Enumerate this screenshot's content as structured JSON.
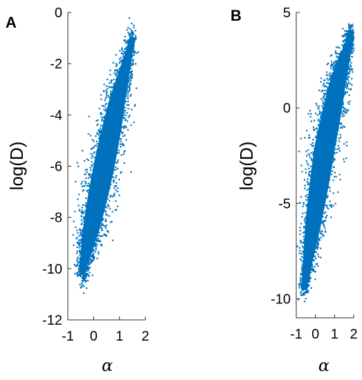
{
  "chart_data": [
    {
      "type": "scatter",
      "panel_label": "A",
      "xlabel": "α",
      "ylabel": "log(D)",
      "xlim": [
        -1,
        2
      ],
      "ylim": [
        -12,
        0
      ],
      "xticks": [
        -1,
        0,
        1,
        2
      ],
      "yticks": [
        0,
        -2,
        -4,
        -6,
        -8,
        -10,
        -12
      ],
      "xtick_labels": [
        "-1",
        "0",
        "1",
        "2"
      ],
      "ytick_labels": [
        "0",
        "-2",
        "-4",
        "-6",
        "-8",
        "-10",
        "-12"
      ],
      "marker_color": "#0072BD",
      "grid": false,
      "point_cloud": {
        "description_points": "dense elongated cloud along a rising diagonal",
        "centerline": [
          [
            -0.45,
            -10.2
          ],
          [
            -0.1,
            -8.5
          ],
          [
            0.4,
            -6
          ],
          [
            0.9,
            -3.5
          ],
          [
            1.5,
            -1
          ]
        ],
        "x_extent": [
          -0.95,
          1.75
        ],
        "y_extent": [
          -11.0,
          -0.2
        ]
      }
    },
    {
      "type": "scatter",
      "panel_label": "B",
      "xlabel": "α",
      "ylabel": "log(D)",
      "xlim": [
        -1,
        2
      ],
      "ylim": [
        -11,
        5
      ],
      "xticks": [
        -1,
        0,
        1,
        2
      ],
      "yticks": [
        5,
        0,
        -5,
        -10
      ],
      "xtick_labels": [
        "-1",
        "0",
        "1",
        "2"
      ],
      "ytick_labels": [
        "5",
        "0",
        "-5",
        "-10"
      ],
      "marker_color": "#0072BD",
      "grid": false,
      "point_cloud": {
        "centerline": [
          [
            -0.6,
            -9.5
          ],
          [
            -0.1,
            -6
          ],
          [
            0.5,
            -2
          ],
          [
            1.2,
            1.5
          ],
          [
            1.9,
            4
          ]
        ],
        "x_extent": [
          -1,
          2
        ],
        "y_extent": [
          -10.8,
          4.4
        ]
      }
    }
  ]
}
